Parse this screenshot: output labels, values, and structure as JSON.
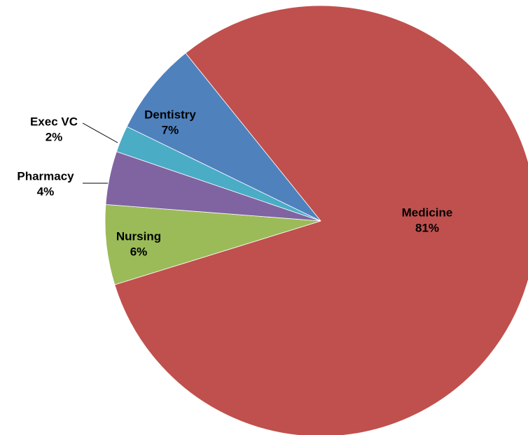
{
  "chart_data": {
    "type": "pie",
    "categories": [
      "Medicine",
      "Nursing",
      "Pharmacy",
      "Exec VC",
      "Dentistry"
    ],
    "values": [
      81,
      6,
      4,
      2,
      7
    ],
    "value_labels": [
      "81%",
      "6%",
      "4%",
      "2%",
      "7%"
    ],
    "colors": [
      "#c0504d",
      "#9bbb59",
      "#8064a2",
      "#4bacc6",
      "#4f81bd"
    ]
  }
}
